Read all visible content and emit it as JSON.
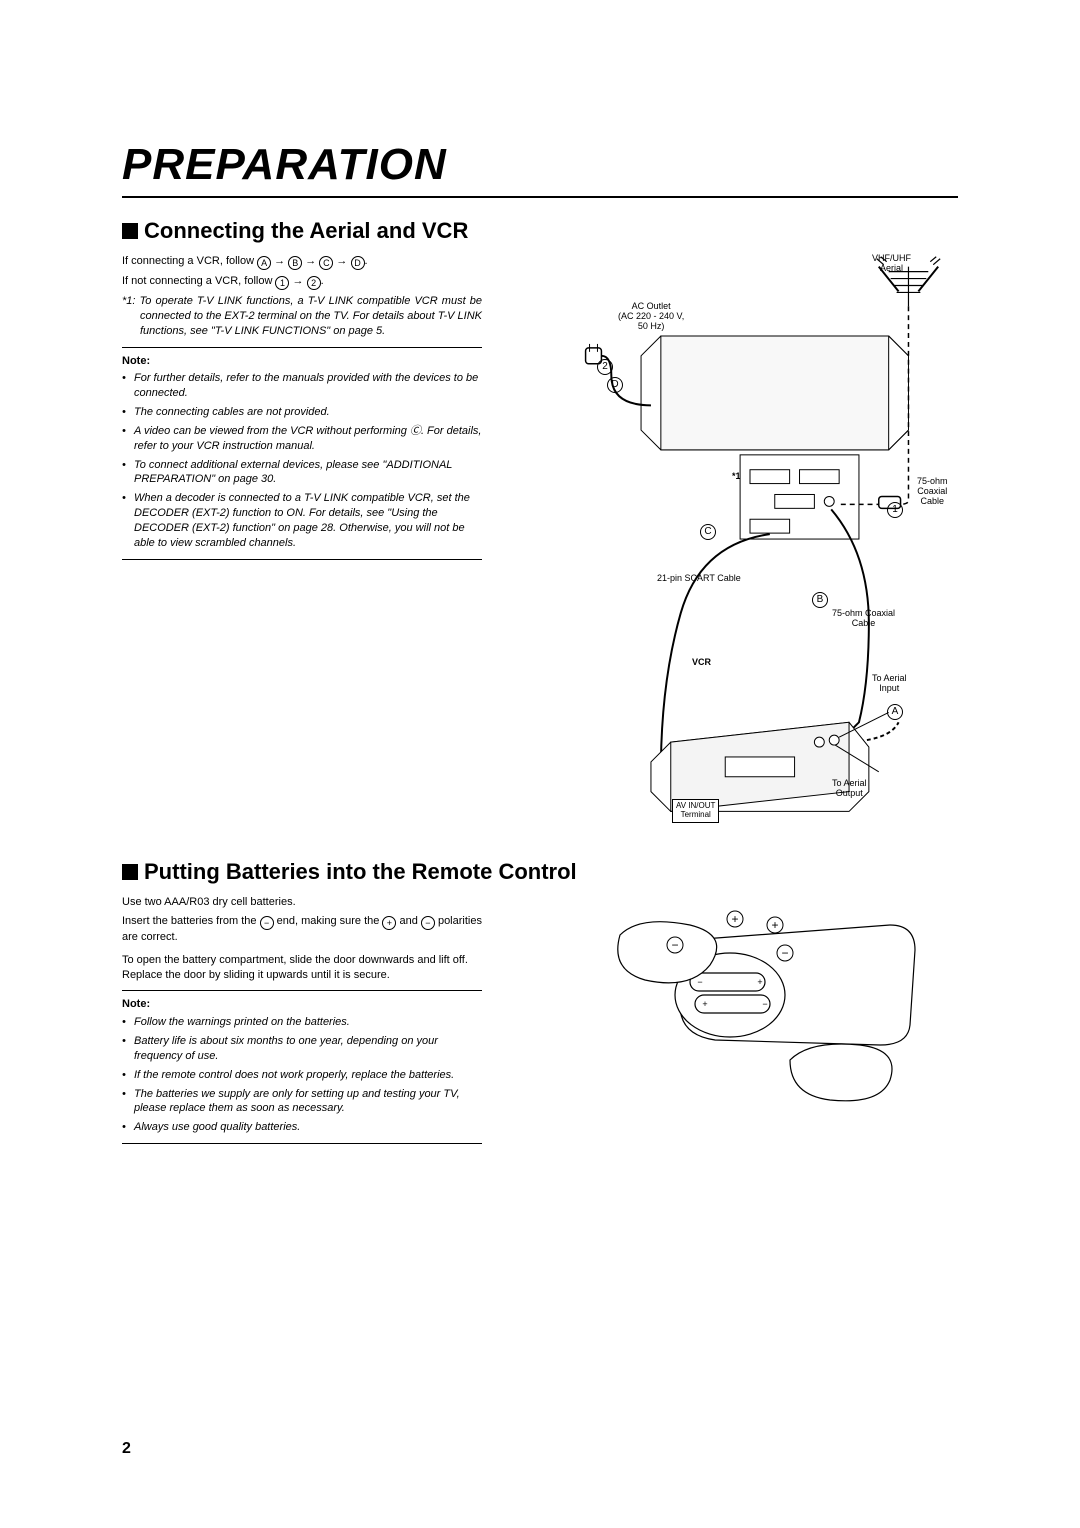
{
  "pageTitle": "PREPARATION",
  "pageNumber": "2",
  "section1": {
    "heading": "Connecting the Aerial and VCR",
    "intro1a": "If connecting a VCR, follow ",
    "intro1b": ".",
    "intro2a": "If not connecting a VCR, follow ",
    "intro2b": ".",
    "seqA": [
      "A",
      "B",
      "C",
      "D"
    ],
    "seqB": [
      "1",
      "2"
    ],
    "footnote": "*1: To operate T-V LINK functions, a T-V LINK compatible VCR must be connected to the EXT-2 terminal on the TV. For details about T-V LINK functions, see \"T-V LINK FUNCTIONS\" on page 5.",
    "noteLabel": "Note:",
    "notes": [
      "For further details, refer to the manuals provided with the devices to be connected.",
      "The connecting cables are not provided.",
      "A video can be viewed from the VCR without performing Ⓒ. For details, refer to your VCR instruction manual.",
      "To connect additional external devices, please see \"ADDITIONAL PREPARATION\" on page 30.",
      "When a decoder is connected to a T-V LINK compatible VCR, set the DECODER (EXT-2) function to ON. For details, see \"Using the DECODER (EXT-2) function\" on page 28. Otherwise, you will not be able to view scrambled channels."
    ],
    "diagram": {
      "labels": {
        "acOutlet": "AC Outlet\n(AC 220 - 240 V,\n50 Hz)",
        "vhf": "VHF/UHF\nAerial",
        "coax75": "75-ohm\nCoaxial\nCable",
        "scart": "21-pin SCART Cable",
        "coax75b": "75-ohm Coaxial\nCable",
        "vcr": "VCR",
        "aerialIn": "To Aerial\nInput",
        "aerialOut": "To Aerial\nOutput",
        "avTerm": "AV IN/OUT\nTerminal",
        "star1": "*1"
      },
      "markers": {
        "n2": "2",
        "nD": "D",
        "nC": "C",
        "n1": "1",
        "nB": "B",
        "nA": "A"
      }
    }
  },
  "section2": {
    "heading": "Putting Batteries into the Remote Control",
    "p1": "Use two AAA/R03 dry cell batteries.",
    "p2a": "Insert the batteries from the ",
    "p2b": " end, making sure the ",
    "p2c": " and ",
    "p2d": " polarities are correct.",
    "polarityPlus": "+",
    "polarityMinus": "−",
    "p3": "To open the battery compartment, slide the door downwards and lift off. Replace the door by sliding it upwards until it is secure.",
    "noteLabel": "Note:",
    "notes": [
      "Follow the warnings printed on the batteries.",
      "Battery life is about six months to one year, depending on your frequency of use.",
      "If the remote control does not work properly, replace the batteries.",
      "The batteries we supply are only for setting up and testing your TV, please replace them as soon as necessary.",
      "Always use good quality batteries."
    ]
  }
}
